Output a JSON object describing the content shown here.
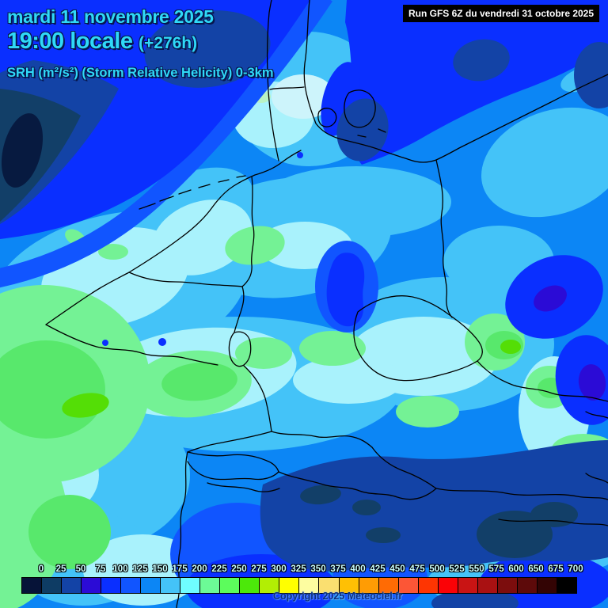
{
  "header": {
    "date_line": "mardi 11 novembre 2025",
    "time_line": "19:00 locale",
    "offset_label": "(+276h)",
    "param_line": "SRH (m²/s²) (Storm Relative Helicity) 0-3km",
    "text_color": "#2fd9f8"
  },
  "run_box": {
    "text": "Run GFS 6Z du vendredi 31 octobre 2025",
    "bg_color": "#000000",
    "text_color": "#ffffff"
  },
  "footer": {
    "copyright": "Copyright 2025 Meteociel.fr"
  },
  "colorbar": {
    "unit": "m²/s²",
    "tick_labels": [
      "0",
      "25",
      "50",
      "75",
      "100",
      "125",
      "150",
      "175",
      "200",
      "225",
      "250",
      "275",
      "300",
      "325",
      "350",
      "375",
      "400",
      "425",
      "450",
      "475",
      "500",
      "525",
      "550",
      "575",
      "600",
      "650",
      "675",
      "700"
    ],
    "cell_colors": [
      "#061338",
      "#0e3c64",
      "#1343a6",
      "#2b0bd6",
      "#0a2fff",
      "#1155ff",
      "#0c86f5",
      "#44c3f8",
      "#6ffdff",
      "#6cfa96",
      "#5cfc5c",
      "#4ce80a",
      "#b2ee04",
      "#ffff00",
      "#fdfda0",
      "#fadf70",
      "#ffc004",
      "#ff9c04",
      "#ff6b04",
      "#fc5636",
      "#fe3502",
      "#fb0206",
      "#c91414",
      "#a91112",
      "#7c0d0d",
      "#5d0a0a",
      "#330404",
      "#000000"
    ]
  },
  "map": {
    "palette": {
      "darkest_navy": "#071a40",
      "dark_navy": "#123f68",
      "navy_blue": "#1343a6",
      "violet_blue": "#2b0bd6",
      "bright_blue": "#0a2fff",
      "blue": "#1155ff",
      "mid_blue": "#0c86f5",
      "sky_blue": "#44c3f8",
      "pale_cyan": "#a9f2fc",
      "light_green": "#74f295",
      "green": "#58e86c",
      "bright_green": "#54de06",
      "border_color": "#000000"
    }
  }
}
